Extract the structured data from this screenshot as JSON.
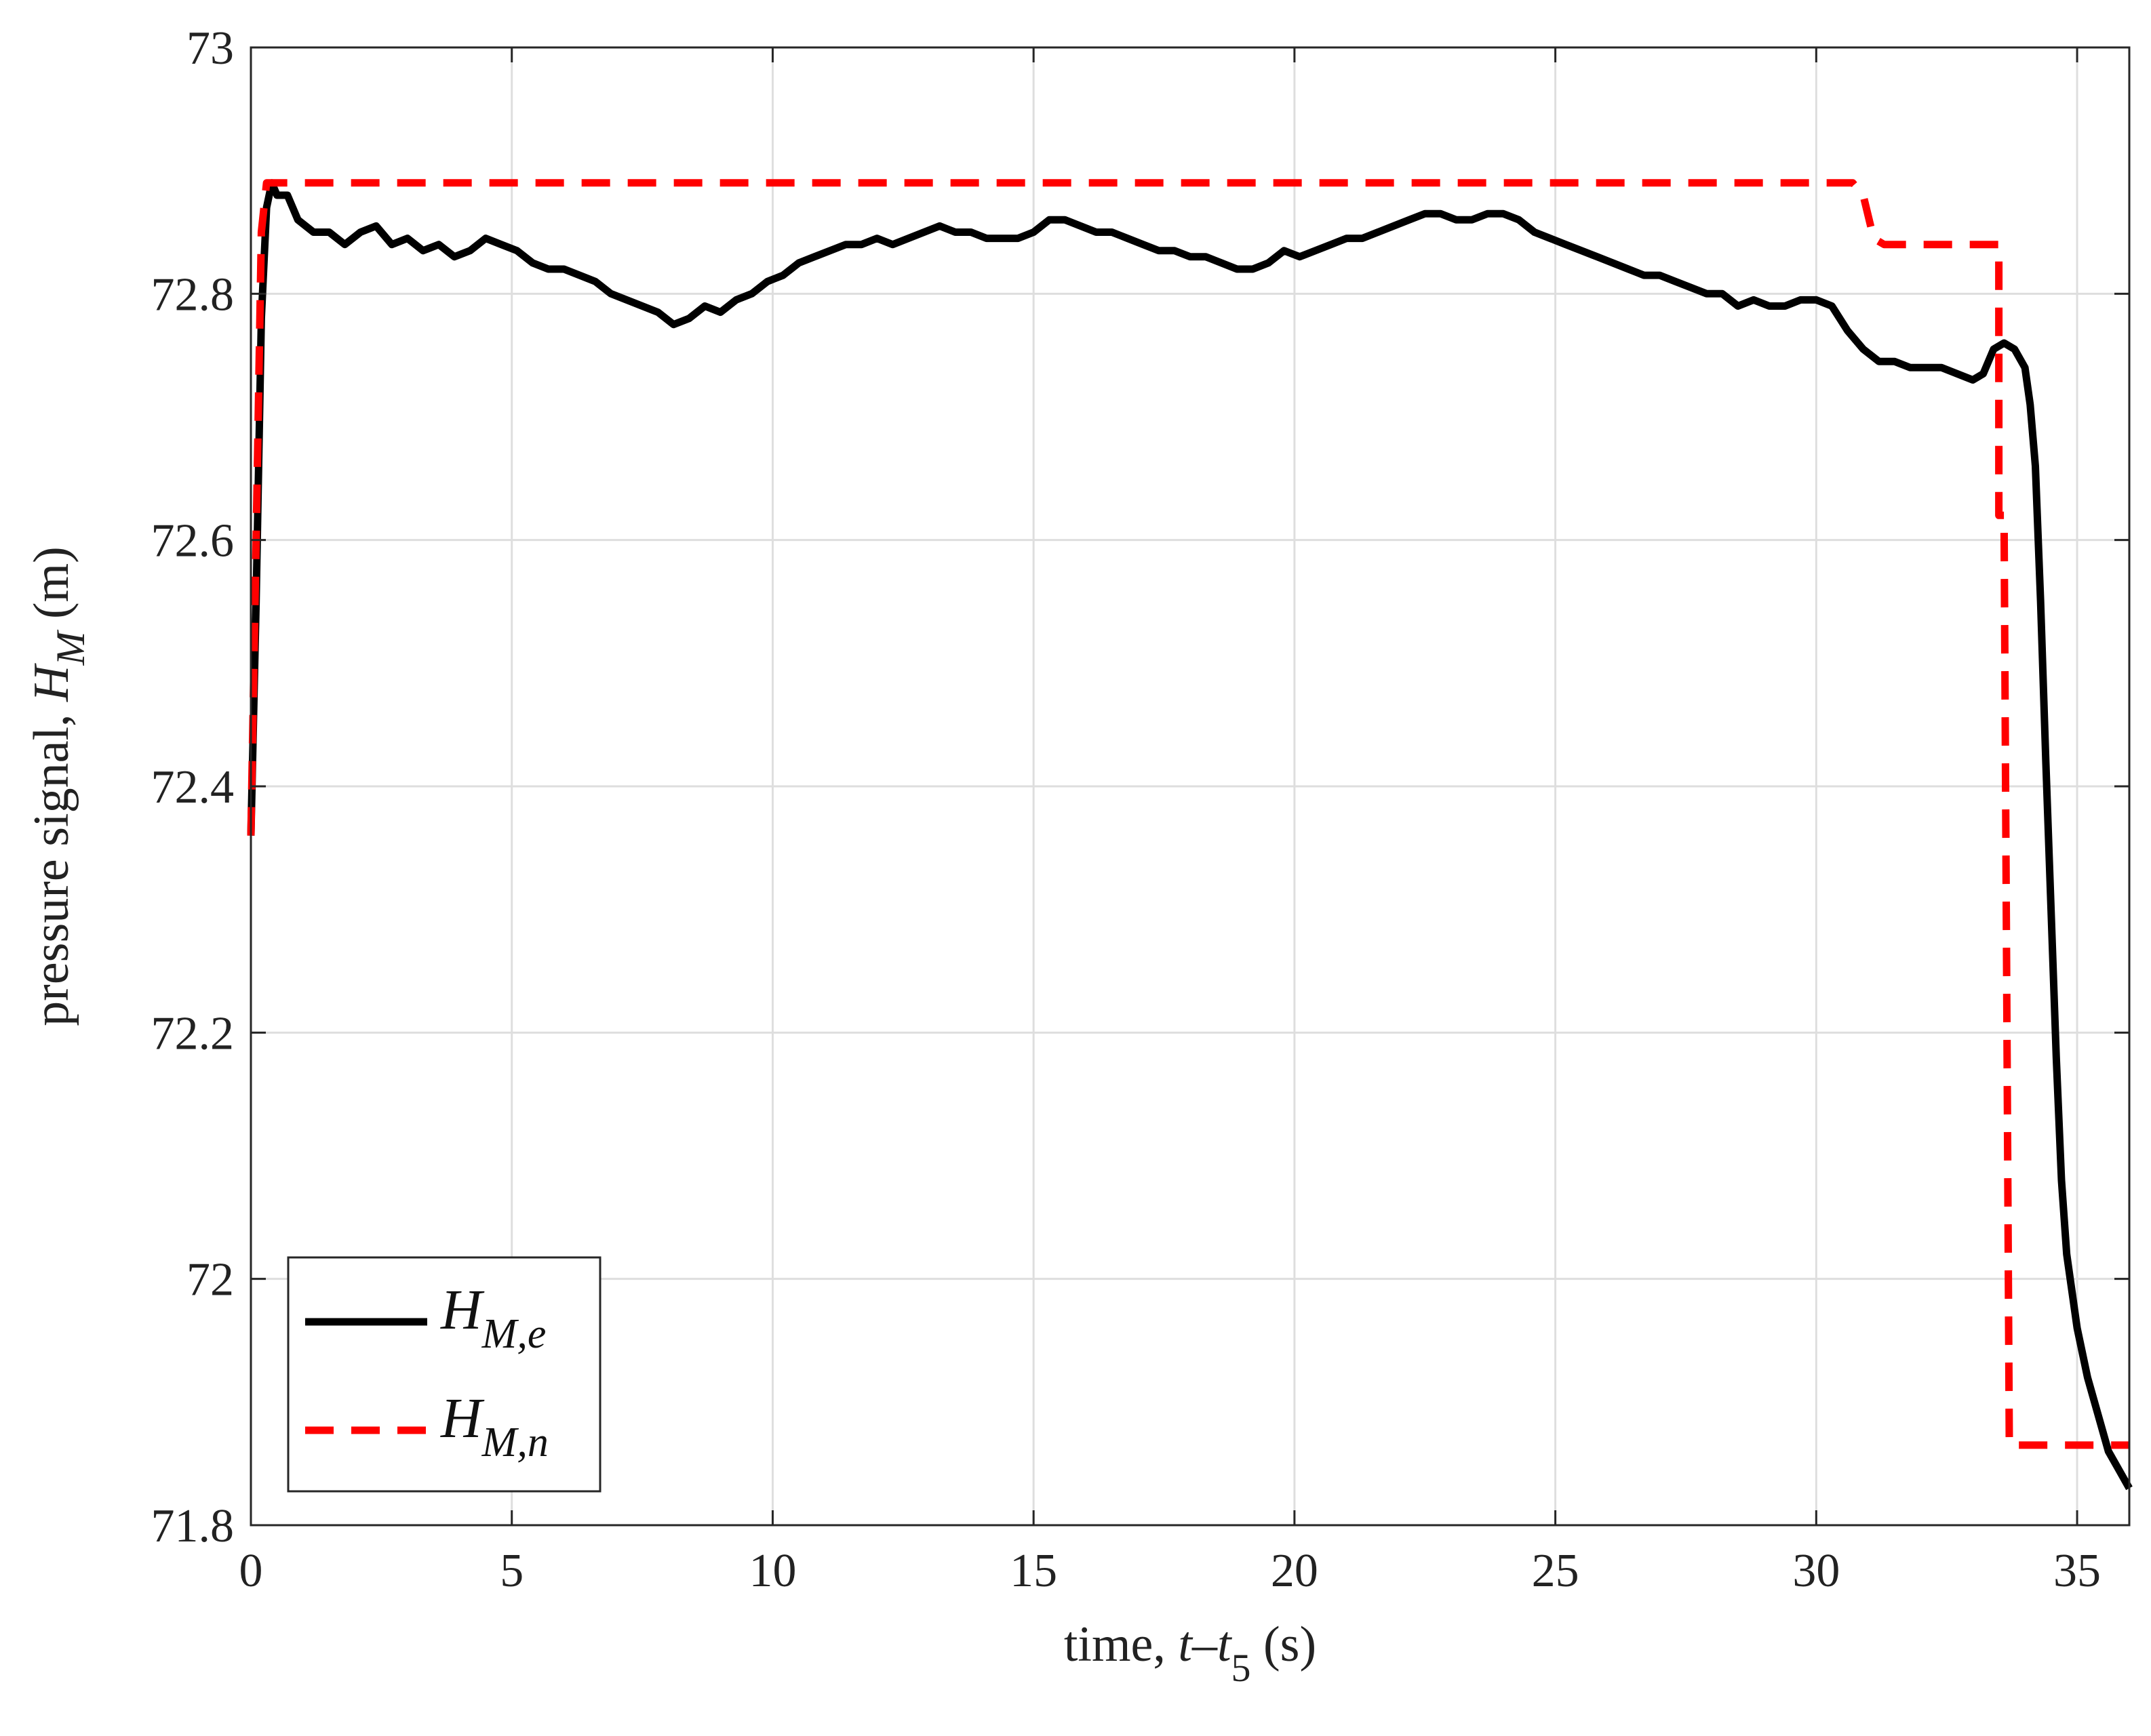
{
  "chart_data": {
    "type": "line",
    "xlabel": {
      "prefix": "time, ",
      "var1": "t",
      "sep": "–",
      "var2": "t",
      "sub": "5",
      "unit": " (s)"
    },
    "ylabel": {
      "prefix": "pressure signal, ",
      "var": "H",
      "sub": "M",
      "unit": " (m)"
    },
    "xlim": [
      0,
      36
    ],
    "ylim": [
      71.8,
      73
    ],
    "xticks": [
      0,
      5,
      10,
      15,
      20,
      25,
      30,
      35
    ],
    "yticks": [
      71.8,
      72,
      72.2,
      72.4,
      72.6,
      72.8,
      73
    ],
    "xtick_labels": [
      "0",
      "5",
      "10",
      "15",
      "20",
      "25",
      "30",
      "35"
    ],
    "ytick_labels": [
      "71.8",
      "72",
      "72.2",
      "72.4",
      "72.6",
      "72.8",
      "73"
    ],
    "grid": true,
    "legend_position": "bottom-left",
    "series": [
      {
        "legend": {
          "var": "H",
          "sub": "M,e"
        },
        "color": "#000000",
        "style": "solid",
        "x": [
          0.0,
          0.1,
          0.2,
          0.3,
          0.4,
          0.5,
          0.7,
          0.9,
          1.2,
          1.5,
          1.8,
          2.1,
          2.4,
          2.7,
          3.0,
          3.3,
          3.6,
          3.9,
          4.2,
          4.5,
          4.8,
          5.1,
          5.4,
          5.7,
          6.0,
          6.3,
          6.6,
          6.9,
          7.2,
          7.5,
          7.8,
          8.1,
          8.4,
          8.7,
          9.0,
          9.3,
          9.6,
          9.9,
          10.2,
          10.5,
          10.8,
          11.1,
          11.4,
          11.7,
          12.0,
          12.3,
          12.6,
          12.9,
          13.2,
          13.5,
          13.8,
          14.1,
          14.4,
          14.7,
          15.0,
          15.3,
          15.6,
          15.9,
          16.2,
          16.5,
          16.8,
          17.1,
          17.4,
          17.7,
          18.0,
          18.3,
          18.6,
          18.9,
          19.2,
          19.5,
          19.8,
          20.1,
          20.4,
          20.7,
          21.0,
          21.3,
          21.6,
          21.9,
          22.2,
          22.5,
          22.8,
          23.1,
          23.4,
          23.7,
          24.0,
          24.3,
          24.6,
          24.9,
          25.2,
          25.5,
          25.8,
          26.1,
          26.4,
          26.7,
          27.0,
          27.3,
          27.6,
          27.9,
          28.2,
          28.5,
          28.8,
          29.1,
          29.4,
          29.7,
          30.0,
          30.3,
          30.6,
          30.9,
          31.2,
          31.5,
          31.8,
          32.1,
          32.4,
          32.7,
          33.0,
          33.2,
          33.4,
          33.6,
          33.8,
          34.0,
          34.1,
          34.2,
          34.3,
          34.4,
          34.5,
          34.6,
          34.7,
          34.8,
          35.0,
          35.2,
          35.4,
          35.6,
          35.8,
          36.0
        ],
        "y": [
          72.36,
          72.55,
          72.78,
          72.87,
          72.89,
          72.88,
          72.88,
          72.86,
          72.85,
          72.85,
          72.84,
          72.85,
          72.855,
          72.84,
          72.845,
          72.835,
          72.84,
          72.83,
          72.835,
          72.845,
          72.84,
          72.835,
          72.825,
          72.82,
          72.82,
          72.815,
          72.81,
          72.8,
          72.795,
          72.79,
          72.785,
          72.775,
          72.78,
          72.79,
          72.785,
          72.795,
          72.8,
          72.81,
          72.815,
          72.825,
          72.83,
          72.835,
          72.84,
          72.84,
          72.845,
          72.84,
          72.845,
          72.85,
          72.855,
          72.85,
          72.85,
          72.845,
          72.845,
          72.845,
          72.85,
          72.86,
          72.86,
          72.855,
          72.85,
          72.85,
          72.845,
          72.84,
          72.835,
          72.835,
          72.83,
          72.83,
          72.825,
          72.82,
          72.82,
          72.825,
          72.835,
          72.83,
          72.835,
          72.84,
          72.845,
          72.845,
          72.85,
          72.855,
          72.86,
          72.865,
          72.865,
          72.86,
          72.86,
          72.865,
          72.865,
          72.86,
          72.85,
          72.845,
          72.84,
          72.835,
          72.83,
          72.825,
          72.82,
          72.815,
          72.815,
          72.81,
          72.805,
          72.8,
          72.8,
          72.79,
          72.795,
          72.79,
          72.79,
          72.795,
          72.795,
          72.79,
          72.77,
          72.755,
          72.745,
          72.745,
          72.74,
          72.74,
          72.74,
          72.735,
          72.73,
          72.735,
          72.755,
          72.76,
          72.755,
          72.74,
          72.71,
          72.66,
          72.55,
          72.42,
          72.3,
          72.18,
          72.08,
          72.02,
          71.96,
          71.92,
          71.89,
          71.86,
          71.845,
          71.83
        ],
        "note": "values sampled from the plotted curve"
      },
      {
        "legend": {
          "var": "H",
          "sub": "M,n"
        },
        "color": "#ff0000",
        "style": "dashed",
        "x": [
          0.0,
          0.1,
          0.2,
          0.3,
          30.7,
          30.9,
          31.1,
          31.3,
          33.5,
          33.5,
          33.6,
          33.7,
          33.7,
          36.0
        ],
        "y": [
          72.36,
          72.6,
          72.85,
          72.89,
          72.89,
          72.88,
          72.845,
          72.84,
          72.84,
          72.62,
          72.62,
          71.87,
          71.865,
          71.865
        ],
        "note": "step profile"
      }
    ]
  }
}
